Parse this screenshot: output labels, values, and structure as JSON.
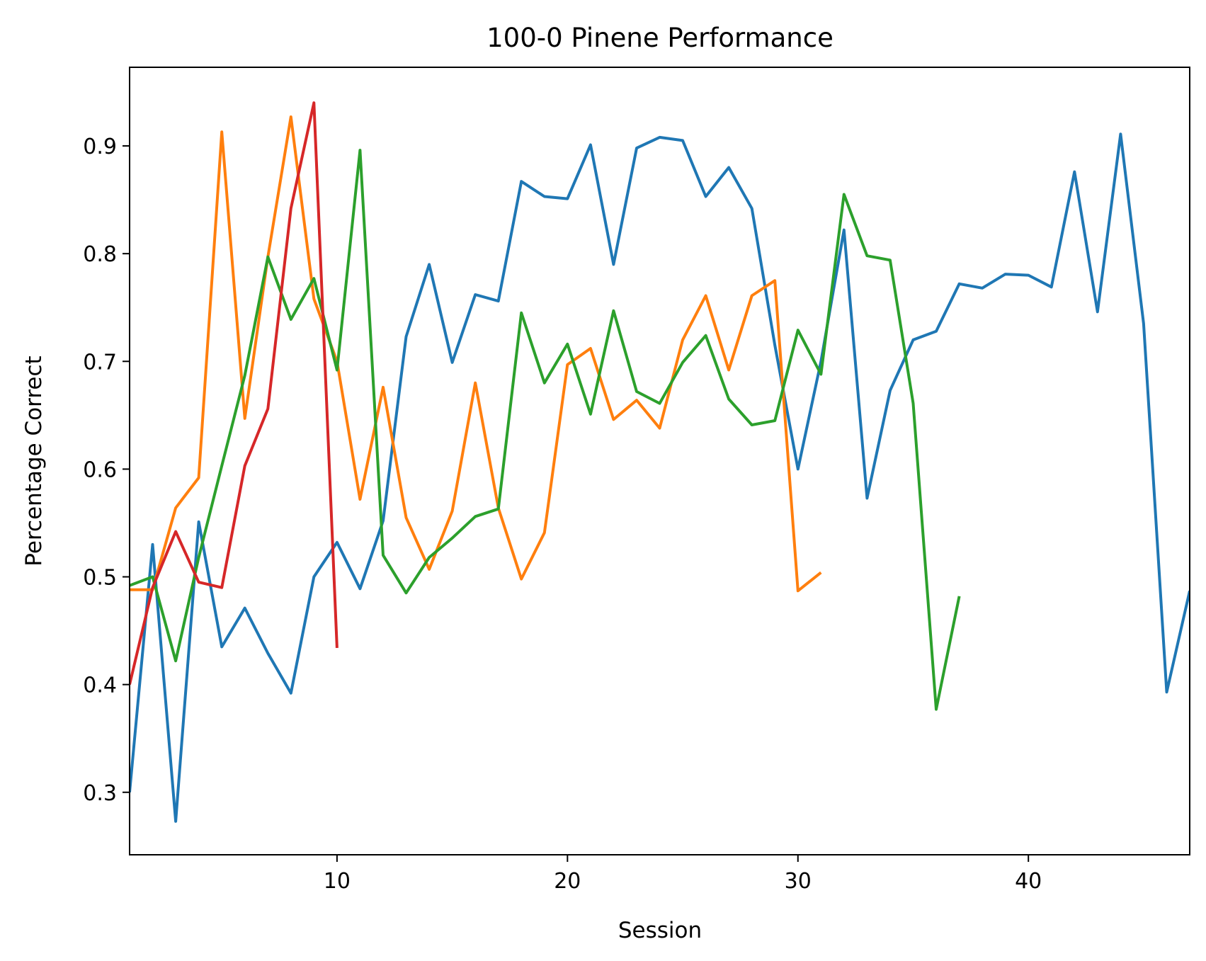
{
  "chart_data": {
    "type": "line",
    "title": "100-0 Pinene Performance",
    "xlabel": "Session",
    "ylabel": "Percentage Correct",
    "xlim": [
      1,
      47
    ],
    "ylim": [
      0.242,
      0.973
    ],
    "x_ticks": [
      10,
      20,
      30,
      40
    ],
    "y_ticks": [
      0.3,
      0.4,
      0.5,
      0.6,
      0.7,
      0.8,
      0.9
    ],
    "grid": false,
    "legend": "none",
    "series": [
      {
        "color": "#1f77b4",
        "x": [
          1,
          2,
          3,
          4,
          5,
          6,
          7,
          8,
          9,
          10,
          11,
          12,
          13,
          14,
          15,
          16,
          17,
          18,
          19,
          20,
          21,
          22,
          23,
          24,
          25,
          26,
          27,
          28,
          29,
          30,
          31,
          32,
          33,
          34,
          35,
          36,
          37,
          38,
          39,
          40,
          41,
          42,
          43,
          44,
          45,
          46,
          47
        ],
        "values": [
          0.3,
          0.53,
          0.273,
          0.551,
          0.435,
          0.471,
          0.429,
          0.392,
          0.5,
          0.532,
          0.489,
          0.552,
          0.723,
          0.79,
          0.699,
          0.762,
          0.756,
          0.867,
          0.853,
          0.851,
          0.901,
          0.79,
          0.898,
          0.908,
          0.905,
          0.853,
          0.88,
          0.842,
          0.715,
          0.6,
          0.7,
          0.822,
          0.573,
          0.673,
          0.72,
          0.728,
          0.772,
          0.768,
          0.781,
          0.78,
          0.769,
          0.876,
          0.746,
          0.911,
          0.735,
          0.393,
          0.487
        ]
      },
      {
        "color": "#ff7f0e",
        "x": [
          1,
          2,
          3,
          4,
          5,
          6,
          7,
          8,
          9,
          10,
          11,
          12,
          13,
          14,
          15,
          16,
          17,
          18,
          19,
          20,
          21,
          22,
          23,
          24,
          25,
          26,
          27,
          28,
          29,
          30,
          31
        ],
        "values": [
          0.488,
          0.488,
          0.564,
          0.592,
          0.913,
          0.647,
          0.797,
          0.927,
          0.758,
          0.7,
          0.572,
          0.676,
          0.555,
          0.507,
          0.561,
          0.68,
          0.564,
          0.498,
          0.541,
          0.697,
          0.712,
          0.646,
          0.664,
          0.638,
          0.72,
          0.761,
          0.692,
          0.761,
          0.775,
          0.487,
          0.504
        ]
      },
      {
        "color": "#2ca02c",
        "x": [
          1,
          2,
          3,
          4,
          5,
          6,
          7,
          8,
          9,
          10,
          11,
          12,
          13,
          14,
          15,
          16,
          17,
          18,
          19,
          20,
          21,
          22,
          23,
          24,
          25,
          26,
          27,
          28,
          29,
          30,
          31,
          32,
          33,
          34,
          35,
          36,
          37
        ],
        "values": [
          0.492,
          0.5,
          0.422,
          0.518,
          0.603,
          0.687,
          0.797,
          0.739,
          0.777,
          0.692,
          0.896,
          0.52,
          0.485,
          0.518,
          0.536,
          0.556,
          0.563,
          0.745,
          0.68,
          0.716,
          0.651,
          0.747,
          0.672,
          0.661,
          0.699,
          0.724,
          0.665,
          0.641,
          0.645,
          0.729,
          0.688,
          0.855,
          0.798,
          0.794,
          0.661,
          0.377,
          0.482
        ]
      },
      {
        "color": "#d62728",
        "x": [
          1,
          2,
          3,
          4,
          5,
          6,
          7,
          8,
          9,
          10
        ],
        "values": [
          0.4,
          0.49,
          0.542,
          0.495,
          0.49,
          0.603,
          0.656,
          0.842,
          0.94,
          0.434
        ]
      }
    ]
  }
}
